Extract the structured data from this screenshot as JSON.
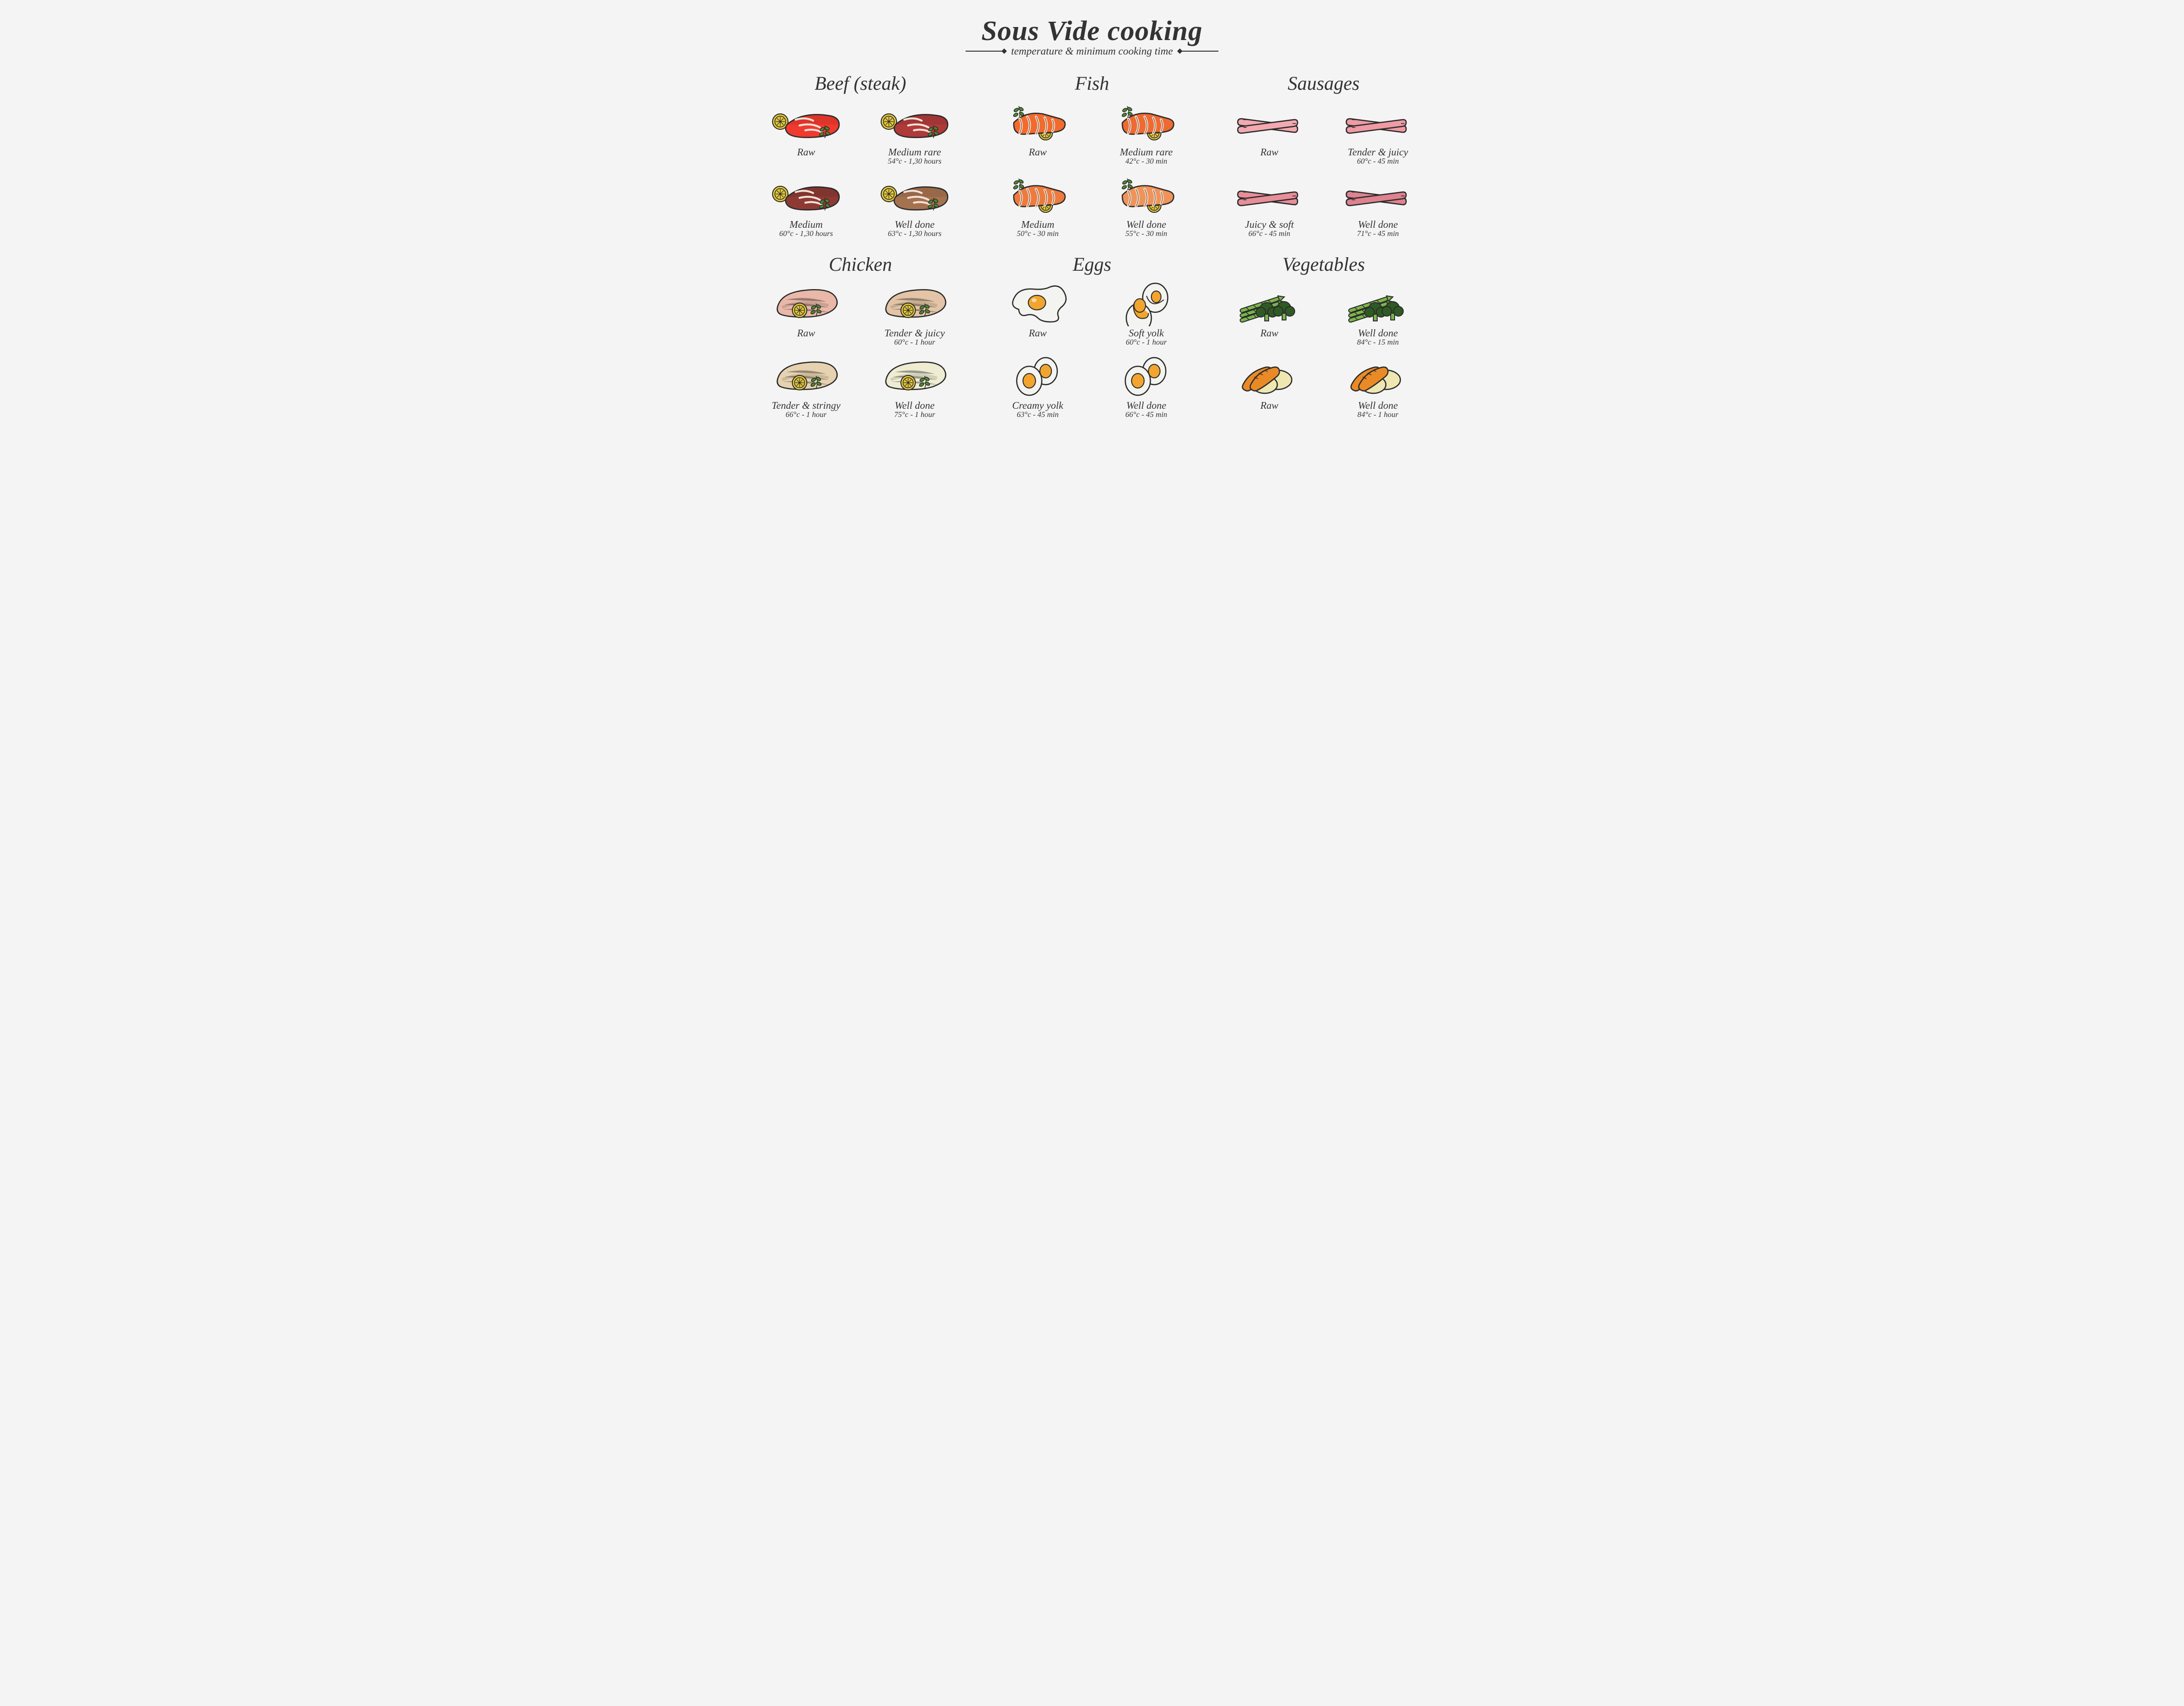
{
  "title": "Sous Vide cooking",
  "subtitle": "temperature & minimum cooking time",
  "layout": {
    "columns": 3,
    "rows": 2,
    "bg_color": "#f4f4f4",
    "ink_color": "#333333",
    "title_fontsize_pt": 44,
    "subtitle_fontsize_pt": 17,
    "category_title_fontsize_pt": 30,
    "label_fontsize_pt": 16,
    "detail_fontsize_pt": 12,
    "font_family": "handwriting-italic"
  },
  "categories": [
    {
      "name": "Beef (steak)",
      "icon": "beef",
      "items": [
        {
          "label": "Raw",
          "detail": "",
          "color": "#f03a2e"
        },
        {
          "label": "Medium rare",
          "detail": "54°c - 1,30 hours",
          "color": "#b03a3a"
        },
        {
          "label": "Medium",
          "detail": "60°c - 1,30 hours",
          "color": "#8e3a34"
        },
        {
          "label": "Well done",
          "detail": "63°c - 1,30 hours",
          "color": "#a5724f"
        }
      ],
      "accents": {
        "garnish": "#4e8a2c",
        "lemon": "#e4c93d",
        "marble": "#f5e2d8"
      }
    },
    {
      "name": "Fish",
      "icon": "fish",
      "items": [
        {
          "label": "Raw",
          "detail": "",
          "color": "#f26a2e"
        },
        {
          "label": "Medium rare",
          "detail": "42°c - 30 min",
          "color": "#ef6a33"
        },
        {
          "label": "Medium",
          "detail": "50°c - 30 min",
          "color": "#ef7a3e"
        },
        {
          "label": "Well done",
          "detail": "55°c - 30 min",
          "color": "#f0935b"
        }
      ],
      "accents": {
        "garnish": "#4e8a2c",
        "lemon": "#e4c93d",
        "stripe": "#ffe0c6"
      }
    },
    {
      "name": "Sausages",
      "icon": "sausage",
      "items": [
        {
          "label": "Raw",
          "detail": "",
          "color": "#f3a9b1"
        },
        {
          "label": "Tender & juicy",
          "detail": "60°c - 45 min",
          "color": "#ef9aa4"
        },
        {
          "label": "Juicy & soft",
          "detail": "66°c - 45 min",
          "color": "#e78e99"
        },
        {
          "label": "Well done",
          "detail": "71°c - 45 min",
          "color": "#de828f"
        }
      ],
      "accents": {}
    },
    {
      "name": "Chicken",
      "icon": "chicken",
      "items": [
        {
          "label": "Raw",
          "detail": "",
          "color": "#e9b8a8"
        },
        {
          "label": "Tender & juicy",
          "detail": "60°c - 1 hour",
          "color": "#e3c4a6"
        },
        {
          "label": "Tender & stringy",
          "detail": "66°c - 1 hour",
          "color": "#e6d2b0"
        },
        {
          "label": "Well done",
          "detail": "75°c - 1 hour",
          "color": "#eeecd3"
        }
      ],
      "accents": {
        "garnish": "#4e8a2c",
        "lemon": "#e4c93d"
      }
    },
    {
      "name": "Eggs",
      "icon": "egg",
      "items": [
        {
          "label": "Raw",
          "detail": "",
          "variant": "fried",
          "color": "#ffffff"
        },
        {
          "label": "Soft yolk",
          "detail": "60°c - 1 hour",
          "variant": "runny",
          "color": "#ffffff"
        },
        {
          "label": "Creamy yolk",
          "detail": "63°c - 45 min",
          "variant": "boiled",
          "color": "#ffffff"
        },
        {
          "label": "Well done",
          "detail": "66°c - 45 min",
          "variant": "boiled",
          "color": "#ffffff"
        }
      ],
      "accents": {
        "yolk": "#f2a52e",
        "shell": "#f3f3ef"
      }
    },
    {
      "name": "Vegetables",
      "icon": "veg",
      "items": [
        {
          "label": "Raw",
          "detail": "",
          "variant": "green",
          "color": "#4e8a2c"
        },
        {
          "label": "Well done",
          "detail": "84°c - 15 min",
          "variant": "green",
          "color": "#4e8a2c"
        },
        {
          "label": "Raw",
          "detail": "",
          "variant": "root",
          "color": "#e98a27"
        },
        {
          "label": "Well done",
          "detail": "84°c - 1 hour",
          "variant": "root",
          "color": "#e98a27"
        }
      ],
      "accents": {
        "asparagus": "#7bb54a",
        "broccoli": "#2f5a24",
        "potato": "#efe7b2",
        "carrot": "#e98a27"
      }
    }
  ]
}
